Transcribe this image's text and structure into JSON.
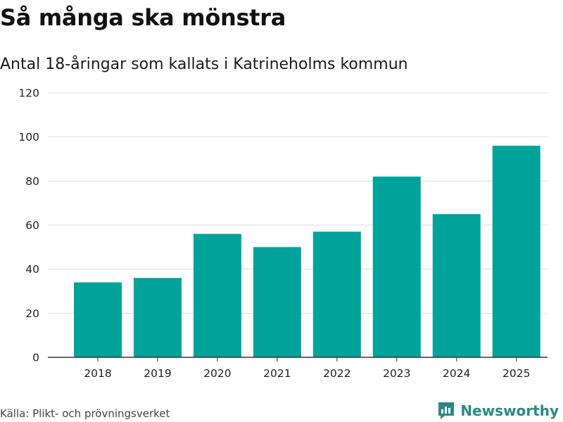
{
  "header": {
    "title": "Så många ska mönstra",
    "subtitle": "Antal 18-åringar som kallats i Katrineholms kommun"
  },
  "footer": {
    "source": "Källa: Plikt- och prövningsverket",
    "brand": "Newsworthy",
    "brand_icon": "newsworthy-logo-icon"
  },
  "colors": {
    "bar": "#00a39a",
    "grid": "#dddddd",
    "axis": "#333333",
    "brand": "#2a8a83"
  },
  "chart_data": {
    "type": "bar",
    "title": "Så många ska mönstra",
    "subtitle": "Antal 18-åringar som kallats i Katrineholms kommun",
    "categories": [
      "2018",
      "2019",
      "2020",
      "2021",
      "2022",
      "2023",
      "2024",
      "2025"
    ],
    "values": [
      34,
      36,
      56,
      50,
      57,
      82,
      65,
      96
    ],
    "yticks": [
      0,
      20,
      40,
      60,
      80,
      100,
      120
    ],
    "ylim": [
      0,
      120
    ],
    "xlabel": "",
    "ylabel": "",
    "grid": true,
    "legend": "none"
  }
}
